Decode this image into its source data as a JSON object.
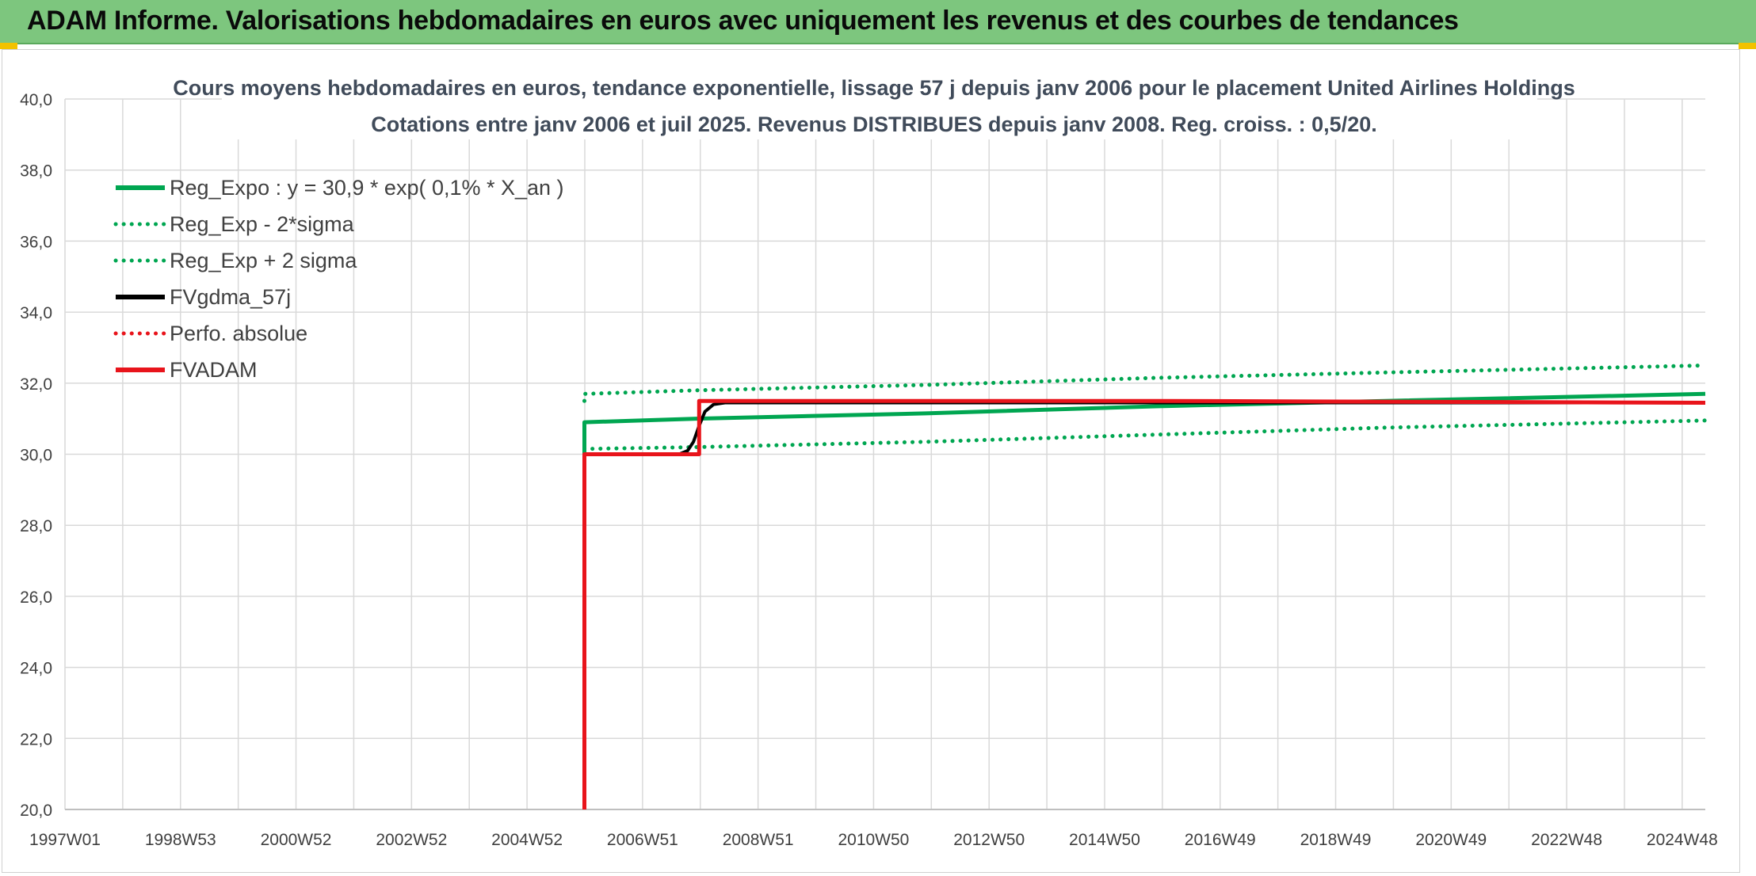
{
  "banner": {
    "title": "ADAM Informe. Valorisations hebdomadaires en euros avec uniquement les revenus et des courbes de tendances"
  },
  "colors": {
    "banner_bg": "#7dc67e",
    "green": "#00a651",
    "black": "#000000",
    "red": "#e8141b",
    "grid": "#d9d9d9"
  },
  "chart_data": {
    "type": "line",
    "title": "Cours moyens hebdomadaires en euros, tendance exponentielle, lissage 57 j depuis janv 2006 pour le placement United Airlines Holdings",
    "subtitle": "Cotations entre janv 2006 et juil 2025. Revenus DISTRIBUES depuis janv 2008. Reg. croiss. : 0,5/20.",
    "xlabel": "",
    "ylabel": "",
    "x_ticks": [
      "1997W01",
      "1998W53",
      "2000W52",
      "2002W52",
      "2004W52",
      "2006W51",
      "2008W51",
      "2010W50",
      "2012W50",
      "2014W50",
      "2016W49",
      "2018W49",
      "2020W49",
      "2022W48",
      "2024W48"
    ],
    "xlim": [
      1997.0,
      2025.58
    ],
    "ylim": [
      20,
      40
    ],
    "y_ticks": [
      "20,0",
      "22,0",
      "24,0",
      "26,0",
      "28,0",
      "30,0",
      "32,0",
      "34,0",
      "36,0",
      "38,0",
      "40,0"
    ],
    "grid": true,
    "legend_position": "top-left",
    "series": [
      {
        "name": "Reg_Expo : y = 30,9 * exp( 0,1% *  X_an )",
        "style": "solid",
        "color": "#00a651",
        "points": [
          [
            2006.05,
            30.0
          ],
          [
            2006.05,
            30.9
          ],
          [
            2008.0,
            31.0
          ],
          [
            2012.0,
            31.15
          ],
          [
            2016.0,
            31.35
          ],
          [
            2020.0,
            31.5
          ],
          [
            2025.58,
            31.7
          ]
        ]
      },
      {
        "name": "Reg_Exp - 2*sigma",
        "style": "dotted",
        "color": "#00a651",
        "points": [
          [
            2006.05,
            30.15
          ],
          [
            2008.0,
            30.2
          ],
          [
            2012.0,
            30.35
          ],
          [
            2016.0,
            30.55
          ],
          [
            2020.0,
            30.75
          ],
          [
            2025.58,
            30.95
          ]
        ]
      },
      {
        "name": "Reg_Exp + 2 sigma",
        "style": "dotted",
        "color": "#00a651",
        "points": [
          [
            2006.05,
            31.5
          ],
          [
            2006.05,
            31.7
          ],
          [
            2008.0,
            31.8
          ],
          [
            2012.0,
            31.95
          ],
          [
            2016.0,
            32.15
          ],
          [
            2020.0,
            32.3
          ],
          [
            2025.58,
            32.5
          ]
        ]
      },
      {
        "name": "FVgdma_57j",
        "style": "solid",
        "color": "#000000",
        "points": [
          [
            2006.05,
            30.0
          ],
          [
            2007.7,
            30.0
          ],
          [
            2007.85,
            30.1
          ],
          [
            2007.95,
            30.35
          ],
          [
            2008.05,
            30.8
          ],
          [
            2008.15,
            31.2
          ],
          [
            2008.3,
            31.4
          ],
          [
            2008.5,
            31.45
          ],
          [
            2025.58,
            31.45
          ]
        ]
      },
      {
        "name": "Perfo. absolue",
        "style": "dotted",
        "color": "#e8141b",
        "points": []
      },
      {
        "name": "FVADAM",
        "style": "solid",
        "color": "#e8141b",
        "points": [
          [
            2006.05,
            20.0
          ],
          [
            2006.05,
            30.0
          ],
          [
            2008.05,
            30.0
          ],
          [
            2008.05,
            31.5
          ],
          [
            2016.0,
            31.5
          ],
          [
            2025.58,
            31.45
          ]
        ]
      }
    ]
  }
}
